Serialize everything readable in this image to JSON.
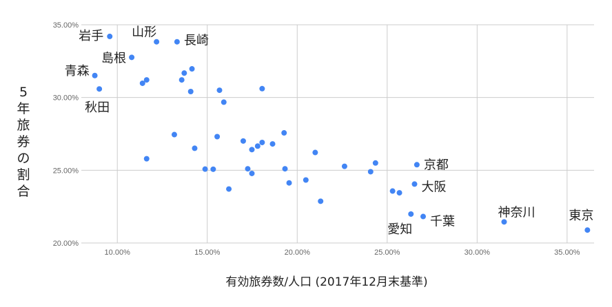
{
  "chart_data": {
    "type": "scatter",
    "xlabel": "有効旅券数/人口 (2017年12月末基準)",
    "ylabel": "5年旅券の割合",
    "xlim": [
      0.08,
      0.365
    ],
    "ylim": [
      0.2,
      0.35
    ],
    "x_ticks": [
      {
        "value": 0.1,
        "label": "10.00%"
      },
      {
        "value": 0.15,
        "label": "15.00%"
      },
      {
        "value": 0.2,
        "label": "20.00%"
      },
      {
        "value": 0.25,
        "label": "25.00%"
      },
      {
        "value": 0.3,
        "label": "30.00%"
      },
      {
        "value": 0.35,
        "label": "35.00%"
      }
    ],
    "y_ticks": [
      {
        "value": 0.2,
        "label": "20.00%"
      },
      {
        "value": 0.25,
        "label": "25.00%"
      },
      {
        "value": 0.3,
        "label": "30.00%"
      },
      {
        "value": 0.35,
        "label": "35.00%"
      }
    ],
    "grid": true,
    "point_color": "#4285f4",
    "points": [
      {
        "x": 0.0958,
        "y": 0.342,
        "label": "岩手",
        "anchor": "end",
        "dx": -9,
        "dy": -1
      },
      {
        "x": 0.1218,
        "y": 0.3383,
        "label": "山形",
        "anchor": "end",
        "dx": 0,
        "dy": -14
      },
      {
        "x": 0.1332,
        "y": 0.3383,
        "label": "長崎",
        "anchor": "start",
        "dx": 10,
        "dy": -2
      },
      {
        "x": 0.108,
        "y": 0.3276,
        "label": "島根",
        "anchor": "end",
        "dx": -8,
        "dy": 1
      },
      {
        "x": 0.0875,
        "y": 0.3151,
        "label": "青森",
        "anchor": "end",
        "dx": -8,
        "dy": -7
      },
      {
        "x": 0.09,
        "y": 0.3059,
        "label": "秋田",
        "anchor": "start",
        "dx": -21,
        "dy": 27
      },
      {
        "x": 0.1415,
        "y": 0.3197
      },
      {
        "x": 0.1372,
        "y": 0.3168
      },
      {
        "x": 0.1358,
        "y": 0.3121
      },
      {
        "x": 0.1163,
        "y": 0.3121
      },
      {
        "x": 0.114,
        "y": 0.3098
      },
      {
        "x": 0.1408,
        "y": 0.3041
      },
      {
        "x": 0.1568,
        "y": 0.305
      },
      {
        "x": 0.1805,
        "y": 0.3061
      },
      {
        "x": 0.1592,
        "y": 0.2968
      },
      {
        "x": 0.1317,
        "y": 0.2745
      },
      {
        "x": 0.1555,
        "y": 0.2731
      },
      {
        "x": 0.1927,
        "y": 0.2757
      },
      {
        "x": 0.17,
        "y": 0.2701
      },
      {
        "x": 0.1805,
        "y": 0.2691
      },
      {
        "x": 0.1863,
        "y": 0.2681
      },
      {
        "x": 0.178,
        "y": 0.2666
      },
      {
        "x": 0.1748,
        "y": 0.2642
      },
      {
        "x": 0.143,
        "y": 0.2651
      },
      {
        "x": 0.21,
        "y": 0.2622
      },
      {
        "x": 0.1163,
        "y": 0.2579
      },
      {
        "x": 0.1488,
        "y": 0.2508
      },
      {
        "x": 0.1533,
        "y": 0.2507
      },
      {
        "x": 0.1725,
        "y": 0.251
      },
      {
        "x": 0.1748,
        "y": 0.2478
      },
      {
        "x": 0.1932,
        "y": 0.251
      },
      {
        "x": 0.2263,
        "y": 0.2527
      },
      {
        "x": 0.2408,
        "y": 0.249
      },
      {
        "x": 0.2435,
        "y": 0.255
      },
      {
        "x": 0.2665,
        "y": 0.2538,
        "label": "京都",
        "anchor": "start",
        "dx": 10,
        "dy": 0
      },
      {
        "x": 0.162,
        "y": 0.2371
      },
      {
        "x": 0.1955,
        "y": 0.2413
      },
      {
        "x": 0.2048,
        "y": 0.2433
      },
      {
        "x": 0.2652,
        "y": 0.2405,
        "label": "大阪",
        "anchor": "start",
        "dx": 10,
        "dy": 4
      },
      {
        "x": 0.253,
        "y": 0.2357
      },
      {
        "x": 0.2568,
        "y": 0.2345
      },
      {
        "x": 0.213,
        "y": 0.2287
      },
      {
        "x": 0.2632,
        "y": 0.2199,
        "label": "愛知",
        "anchor": "end",
        "dx": 2,
        "dy": 22
      },
      {
        "x": 0.27,
        "y": 0.2182,
        "label": "千葉",
        "anchor": "start",
        "dx": 10,
        "dy": 7
      },
      {
        "x": 0.315,
        "y": 0.2145,
        "label": "神奈川",
        "anchor": "middle",
        "dx": 18,
        "dy": -14
      },
      {
        "x": 0.3613,
        "y": 0.2089,
        "label": "東京",
        "anchor": "middle",
        "dx": -9,
        "dy": -21
      }
    ]
  }
}
